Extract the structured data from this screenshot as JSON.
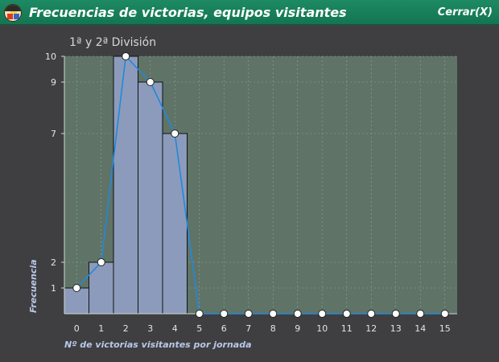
{
  "window": {
    "title": "Frecuencias de victorias, equipos visitantes",
    "close_label": "Cerrar(X)"
  },
  "colors": {
    "titlebar": "#178060",
    "background": "#3f3f41",
    "plot_area": "#5f7467",
    "bar_fill": "#8c9bbb",
    "line": "#2288dd",
    "marker": "#ffffff"
  },
  "chart_data": {
    "type": "bar",
    "title": "1ª y 2ª División",
    "xlabel": "Nº de victorias visitantes por jornada",
    "ylabel": "Frecuencia",
    "x": [
      0,
      1,
      2,
      3,
      4,
      5,
      6,
      7,
      8,
      9,
      10,
      11,
      12,
      13,
      14,
      15
    ],
    "values": [
      1,
      2,
      10,
      9,
      7,
      0,
      0,
      0,
      0,
      0,
      0,
      0,
      0,
      0,
      0,
      0
    ],
    "ylim": [
      0,
      10
    ],
    "xlim": [
      -0.5,
      15.5
    ],
    "ytick_labels": [
      "1",
      "2",
      "7",
      "9",
      "10"
    ],
    "yticks": [
      1,
      2,
      7,
      9,
      10
    ],
    "xtick_labels": [
      "0",
      "1",
      "2",
      "3",
      "4",
      "5",
      "6",
      "7",
      "8",
      "9",
      "10",
      "11",
      "12",
      "13",
      "14",
      "15"
    ],
    "overlay_line": true,
    "grid": true
  }
}
